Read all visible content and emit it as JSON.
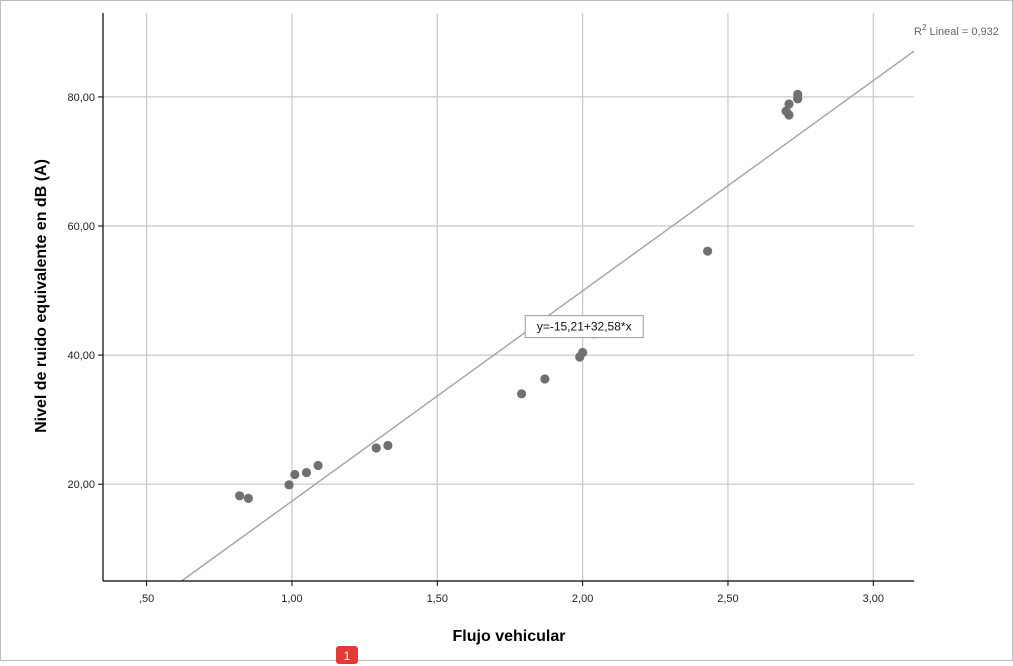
{
  "chart_data": {
    "type": "scatter",
    "xlabel": "Flujo vehicular",
    "ylabel": "Nivel de ruido equivalente en dB (A)",
    "xlim": [
      0.35,
      3.14
    ],
    "ylim": [
      5.0,
      93.0
    ],
    "x_ticks": [
      0.5,
      1.0,
      1.5,
      2.0,
      2.5,
      3.0
    ],
    "x_tick_labels": [
      ",50",
      "1,00",
      "1,50",
      "2,00",
      "2,50",
      "3,00"
    ],
    "y_ticks": [
      20,
      40,
      60,
      80
    ],
    "y_tick_labels": [
      "20,00",
      "40,00",
      "60,00",
      "80,00"
    ],
    "grid": true,
    "series": [
      {
        "points": [
          {
            "x": 0.82,
            "y": 18.2
          },
          {
            "x": 0.85,
            "y": 17.8
          },
          {
            "x": 0.99,
            "y": 19.9
          },
          {
            "x": 1.01,
            "y": 21.5
          },
          {
            "x": 1.05,
            "y": 21.8
          },
          {
            "x": 1.09,
            "y": 22.9
          },
          {
            "x": 1.29,
            "y": 25.6
          },
          {
            "x": 1.33,
            "y": 26.0
          },
          {
            "x": 1.79,
            "y": 34.0
          },
          {
            "x": 1.87,
            "y": 36.3
          },
          {
            "x": 1.99,
            "y": 39.7
          },
          {
            "x": 2.0,
            "y": 40.4
          },
          {
            "x": 2.04,
            "y": 43.3
          },
          {
            "x": 2.43,
            "y": 56.1
          },
          {
            "x": 2.7,
            "y": 77.8
          },
          {
            "x": 2.71,
            "y": 77.2
          },
          {
            "x": 2.71,
            "y": 78.9
          },
          {
            "x": 2.74,
            "y": 79.7
          },
          {
            "x": 2.74,
            "y": 80.4
          }
        ]
      }
    ],
    "fit_line": {
      "intercept": -15.21,
      "slope": 32.58,
      "equation_label": "y=-15,21+32,58*x",
      "equation_at_x": 1.83
    },
    "r2_label_prefix": "R",
    "r2_label_sup": "2",
    "r2_label_suffix": " Lineal = 0,932"
  },
  "badge": {
    "text": "1",
    "color": "#e53935"
  }
}
